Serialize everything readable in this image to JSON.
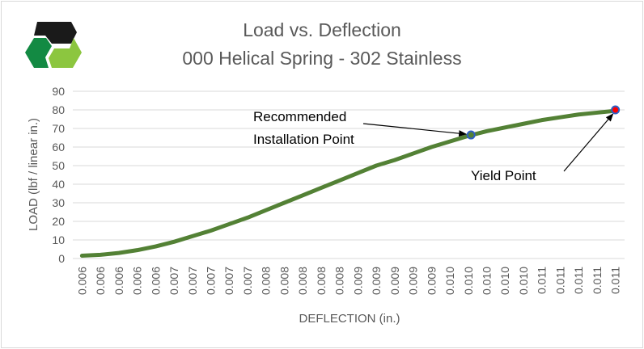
{
  "chart_data": {
    "type": "line",
    "title": "Load vs. Deflection",
    "subtitle": "000 Helical Spring - 302 Stainless",
    "xlabel": "DEFLECTION (in.)",
    "ylabel": "LOAD (lbf / linear in.)",
    "ylim": [
      0,
      90
    ],
    "yticks": [
      0,
      10,
      20,
      30,
      40,
      50,
      60,
      70,
      80,
      90
    ],
    "grid": true,
    "legend": "none",
    "categories": [
      "0.006",
      "0.006",
      "0.006",
      "0.006",
      "0.006",
      "0.007",
      "0.007",
      "0.007",
      "0.007",
      "0.007",
      "0.008",
      "0.008",
      "0.008",
      "0.008",
      "0.008",
      "0.009",
      "0.009",
      "0.009",
      "0.009",
      "0.009",
      "0.010",
      "0.010",
      "0.010",
      "0.010",
      "0.010",
      "0.011",
      "0.011",
      "0.011",
      "0.011",
      "0.011"
    ],
    "series": [
      {
        "name": "Load",
        "color": "#538135",
        "values": [
          1.5,
          2,
          3,
          4.5,
          6.5,
          9,
          12,
          15,
          18.5,
          22,
          26,
          30,
          34,
          38,
          42,
          46,
          50,
          53,
          56.5,
          60,
          63,
          66,
          68.5,
          70.5,
          72.5,
          74.5,
          76,
          77.5,
          78.5,
          79.5
        ]
      }
    ],
    "annotations": [
      {
        "label_lines": [
          "Recommended",
          "Installation Point"
        ],
        "category_index": 21.15,
        "value": 66.5,
        "marker_fill": "#538135",
        "marker_stroke": "#2f5fc4"
      },
      {
        "label_lines": [
          "Yield Point"
        ],
        "category_index": 29,
        "value": 80,
        "marker_fill": "#ff0000",
        "marker_stroke": "#2f5fc4"
      }
    ]
  },
  "logo": {
    "name": "company-hexagon-logo",
    "colors": [
      "#1a1a1a",
      "#138a43",
      "#8cc63f"
    ]
  }
}
